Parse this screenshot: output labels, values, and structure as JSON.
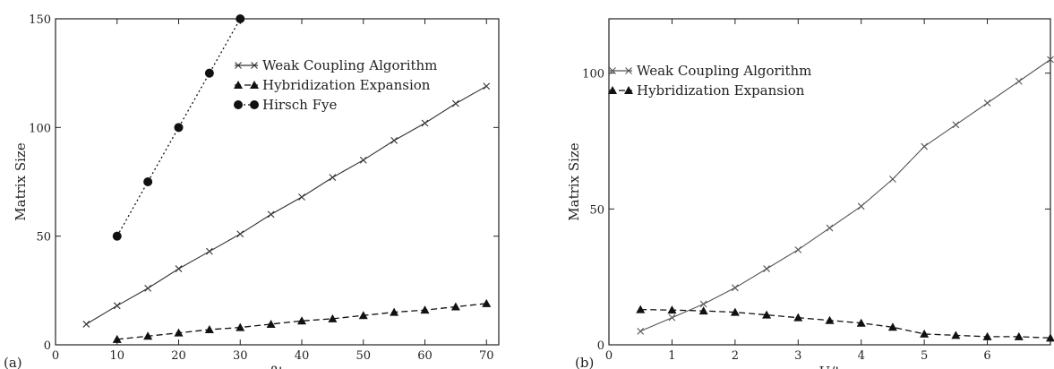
{
  "chart_data": [
    {
      "type": "line",
      "panel_label": "(a)",
      "xlabel": "βt",
      "ylabel": "Matrix Size",
      "xlim": [
        0,
        72
      ],
      "ylim": [
        0,
        150
      ],
      "xticks": [
        0,
        10,
        20,
        30,
        40,
        50,
        60,
        70
      ],
      "yticks": [
        0,
        50,
        100,
        150
      ],
      "grid": false,
      "legend_position": "top-right",
      "series": [
        {
          "name": "Weak Coupling Algorithm",
          "marker": "x",
          "line": "solid",
          "color": "#333333",
          "x": [
            5,
            10,
            15,
            20,
            25,
            30,
            35,
            40,
            45,
            50,
            55,
            60,
            65,
            70
          ],
          "y": [
            9.5,
            18,
            26,
            35,
            43,
            51,
            60,
            68,
            77,
            85,
            94,
            102,
            111,
            119
          ]
        },
        {
          "name": "Hybridization Expansion",
          "marker": "triangle",
          "line": "dashed",
          "color": "#111111",
          "x": [
            10,
            15,
            20,
            25,
            30,
            35,
            40,
            45,
            50,
            55,
            60,
            65,
            70
          ],
          "y": [
            2.5,
            4,
            5.5,
            7,
            8,
            9.5,
            11,
            12,
            13.5,
            15,
            16,
            17.5,
            19
          ]
        },
        {
          "name": "Hirsch Fye",
          "marker": "circle",
          "line": "dotted",
          "color": "#111111",
          "x": [
            10,
            15,
            20,
            25,
            30
          ],
          "y": [
            50,
            75,
            100,
            125,
            150
          ]
        }
      ]
    },
    {
      "type": "line",
      "panel_label": "(b)",
      "xlabel": "U/t",
      "ylabel": "Matrix Size",
      "xlim": [
        0,
        7
      ],
      "ylim": [
        0,
        120
      ],
      "xticks": [
        0,
        1,
        2,
        3,
        4,
        5,
        6
      ],
      "yticks": [
        0,
        50,
        100
      ],
      "grid": false,
      "legend_position": "top-left",
      "series": [
        {
          "name": "Weak Coupling Algorithm",
          "marker": "x",
          "line": "solid",
          "color": "#555555",
          "x": [
            0.5,
            1.0,
            1.5,
            2.0,
            2.5,
            3.0,
            3.5,
            4.0,
            4.5,
            5.0,
            5.5,
            6.0,
            6.5,
            7.0
          ],
          "y": [
            5,
            10,
            15,
            21,
            28,
            35,
            43,
            51,
            61,
            73,
            81,
            89,
            97,
            105
          ]
        },
        {
          "name": "Hybridization Expansion",
          "marker": "triangle",
          "line": "dashed",
          "color": "#111111",
          "x": [
            0.5,
            1.0,
            1.5,
            2.0,
            2.5,
            3.0,
            3.5,
            4.0,
            4.5,
            5.0,
            5.5,
            6.0,
            6.5,
            7.0
          ],
          "y": [
            13,
            12.8,
            12.5,
            12,
            11,
            10,
            9,
            8,
            6.5,
            4,
            3.5,
            3,
            3,
            2.5
          ]
        }
      ]
    }
  ]
}
